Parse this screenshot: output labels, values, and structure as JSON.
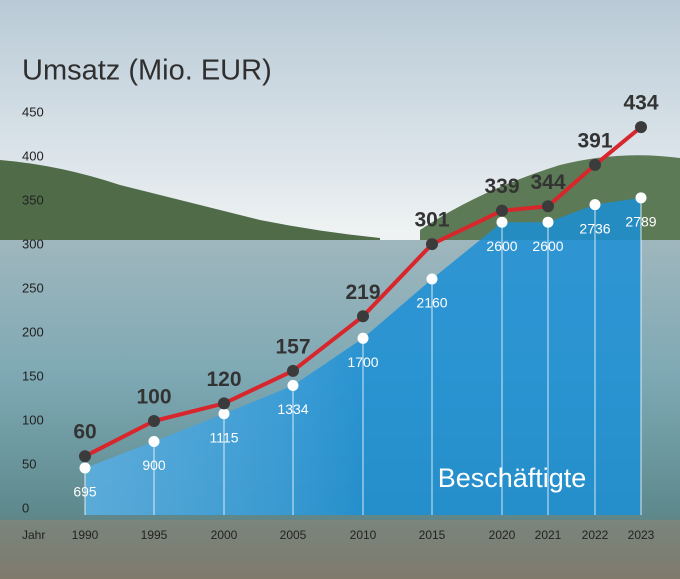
{
  "chart_data": {
    "type": "line",
    "title": "Umsatz (Mio. EUR)",
    "x_label": "Jahr",
    "categories": [
      "1990",
      "1995",
      "2000",
      "2005",
      "2010",
      "2015",
      "2020",
      "2021",
      "2022",
      "2023"
    ],
    "series": [
      {
        "color": "#d7262c",
        "marker_color": "#3b3b3b",
        "values": [
          60,
          100,
          120,
          157,
          219,
          301,
          339,
          344,
          391,
          434
        ]
      },
      {
        "name": "Beschäftigte",
        "type": "area",
        "color": "#1b8fd6",
        "marker_color": "#ffffff",
        "values": [
          695,
          900,
          1115,
          1334,
          1700,
          2160,
          2600,
          2600,
          2736,
          2789
        ]
      }
    ],
    "ylim": [
      0,
      450
    ],
    "yticks": [
      0,
      50,
      100,
      150,
      200,
      250,
      300,
      350,
      400,
      450
    ]
  }
}
